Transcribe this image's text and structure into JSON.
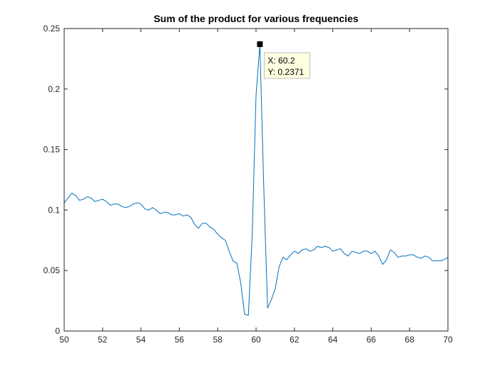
{
  "chart_data": {
    "type": "line",
    "title": "Sum of the product for various frequencies",
    "xlabel": "",
    "ylabel": "",
    "xlim": [
      50,
      70
    ],
    "ylim": [
      0,
      0.25
    ],
    "x_ticks": [
      "50",
      "52",
      "54",
      "56",
      "58",
      "60",
      "62",
      "64",
      "66",
      "68",
      "70"
    ],
    "y_ticks": [
      "0",
      "0.05",
      "0.1",
      "0.15",
      "0.2",
      "0.25"
    ],
    "grid": false,
    "series_color": "#0072BD",
    "series": [
      {
        "x": [
          50.0,
          50.2,
          50.4,
          50.6,
          50.8,
          51.0,
          51.2,
          51.4,
          51.6,
          51.8,
          52.0,
          52.2,
          52.4,
          52.6,
          52.8,
          53.0,
          53.2,
          53.4,
          53.6,
          53.8,
          54.0,
          54.2,
          54.4,
          54.6,
          54.8,
          55.0,
          55.2,
          55.4,
          55.6,
          55.8,
          56.0,
          56.2,
          56.4,
          56.6,
          56.8,
          57.0,
          57.2,
          57.4,
          57.6,
          57.8,
          58.0,
          58.2,
          58.4,
          58.6,
          58.8,
          59.0,
          59.2,
          59.4,
          59.6,
          59.8,
          60.0,
          60.2,
          60.4,
          60.6,
          60.8,
          61.0,
          61.2,
          61.4,
          61.6,
          61.8,
          62.0,
          62.2,
          62.4,
          62.6,
          62.8,
          63.0,
          63.2,
          63.4,
          63.6,
          63.8,
          64.0,
          64.2,
          64.4,
          64.6,
          64.8,
          65.0,
          65.2,
          65.4,
          65.6,
          65.8,
          66.0,
          66.2,
          66.4,
          66.6,
          66.8,
          67.0,
          67.2,
          67.4,
          67.6,
          67.8,
          68.0,
          68.2,
          68.4,
          68.6,
          68.8,
          69.0,
          69.2,
          69.4,
          69.6,
          69.8,
          70.0
        ],
        "y": [
          0.106,
          0.11,
          0.114,
          0.112,
          0.108,
          0.109,
          0.111,
          0.11,
          0.107,
          0.108,
          0.109,
          0.107,
          0.104,
          0.105,
          0.105,
          0.103,
          0.102,
          0.103,
          0.105,
          0.106,
          0.105,
          0.101,
          0.1,
          0.102,
          0.1,
          0.097,
          0.098,
          0.098,
          0.096,
          0.096,
          0.097,
          0.095,
          0.096,
          0.094,
          0.088,
          0.085,
          0.089,
          0.089,
          0.086,
          0.084,
          0.08,
          0.077,
          0.075,
          0.066,
          0.058,
          0.056,
          0.04,
          0.014,
          0.013,
          0.08,
          0.195,
          0.2371,
          0.12,
          0.019,
          0.026,
          0.035,
          0.053,
          0.061,
          0.059,
          0.063,
          0.066,
          0.064,
          0.067,
          0.068,
          0.066,
          0.067,
          0.07,
          0.069,
          0.07,
          0.069,
          0.066,
          0.067,
          0.068,
          0.064,
          0.062,
          0.066,
          0.065,
          0.064,
          0.066,
          0.066,
          0.064,
          0.066,
          0.062,
          0.055,
          0.059,
          0.067,
          0.065,
          0.061,
          0.062,
          0.062,
          0.063,
          0.063,
          0.061,
          0.06,
          0.062,
          0.061,
          0.058,
          0.058,
          0.058,
          0.059,
          0.061
        ]
      }
    ],
    "datatip": {
      "x": 60.2,
      "y": 0.2371,
      "x_text": "X: 60.2",
      "y_text": "Y: 0.2371"
    }
  }
}
